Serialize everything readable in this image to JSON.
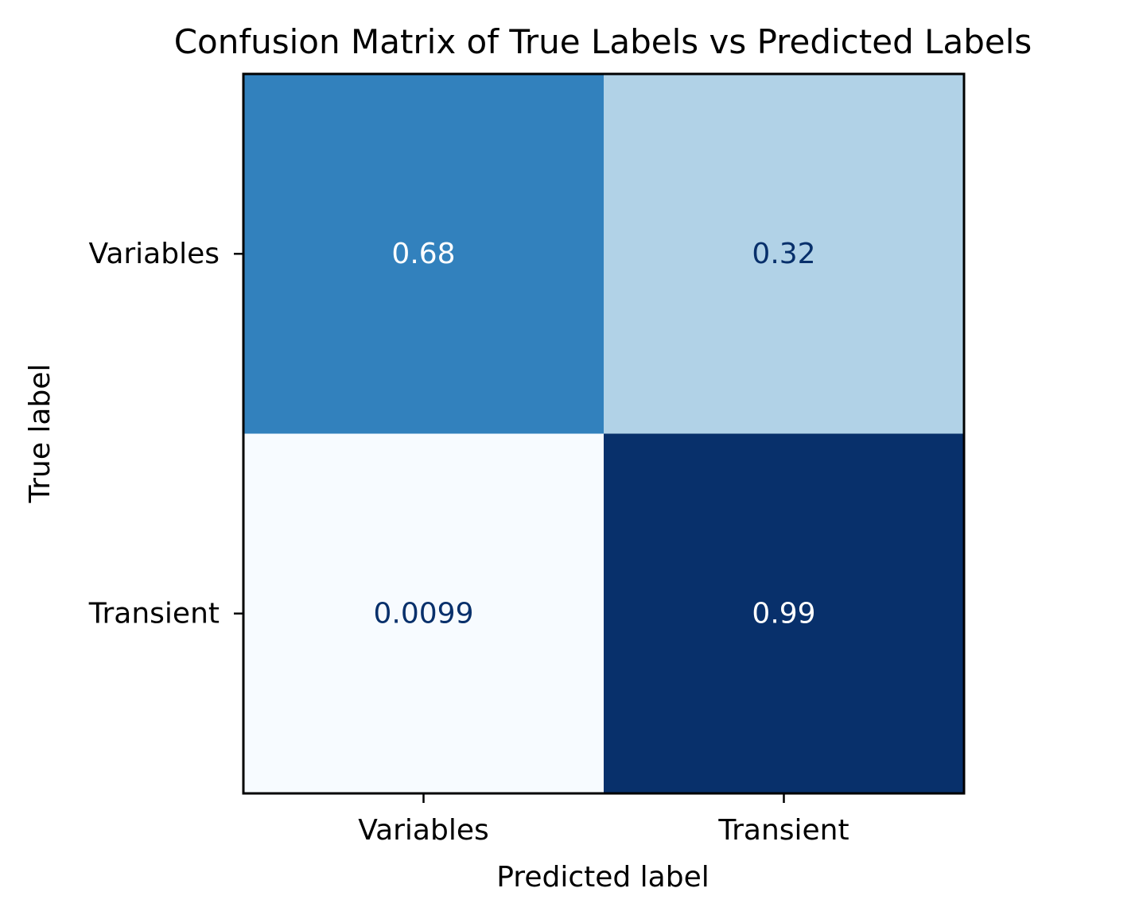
{
  "chart_data": {
    "type": "heatmap",
    "title": "Confusion Matrix of True Labels vs Predicted Labels",
    "xlabel": "Predicted label",
    "ylabel": "True label",
    "row_labels": [
      "Variables",
      "Transient"
    ],
    "col_labels": [
      "Variables",
      "Transient"
    ],
    "values": [
      [
        0.68,
        0.32
      ],
      [
        0.0099,
        0.99
      ]
    ],
    "value_labels": [
      [
        "0.68",
        "0.32"
      ],
      [
        "0.0099",
        "0.99"
      ]
    ],
    "colormap": "Blues",
    "color_range": [
      0.0099,
      0.99
    ],
    "colorbar": false,
    "colors": {
      "cells": [
        [
          "#3281bd",
          "#b1d2e7"
        ],
        [
          "#f7fbff",
          "#08306b"
        ]
      ],
      "text_on_dark": "#ffffff",
      "text_on_light": "#08306b"
    }
  }
}
